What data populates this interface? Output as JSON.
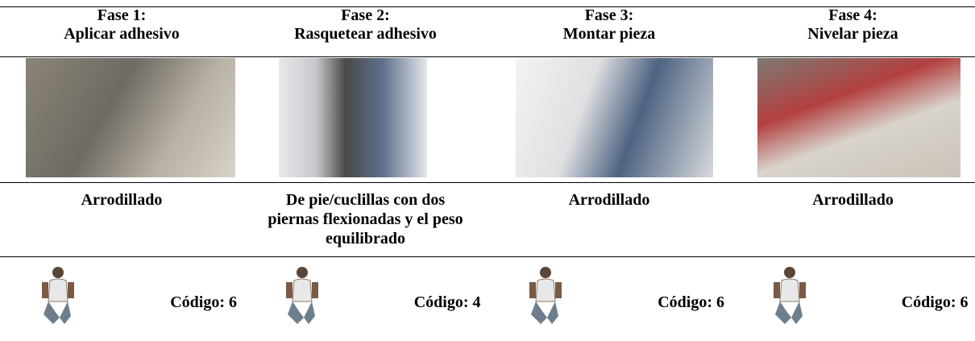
{
  "columns": [
    {
      "phase": "Fase 1:",
      "task": "Aplicar adhesivo",
      "posture": "Arrodillado",
      "code": "Código: 6"
    },
    {
      "phase": "Fase 2:",
      "task": "Rasquetear adhesivo",
      "posture": "De pie/cuclillas con dos piernas flexionadas y el peso equilibrado",
      "code": "Código: 4"
    },
    {
      "phase": "Fase 3:",
      "task": "Montar pieza",
      "posture": "Arrodillado",
      "code": "Código: 6"
    },
    {
      "phase": "Fase 4:",
      "task": "Nivelar pieza",
      "posture": "Arrodillado",
      "code": "Código: 6"
    }
  ]
}
